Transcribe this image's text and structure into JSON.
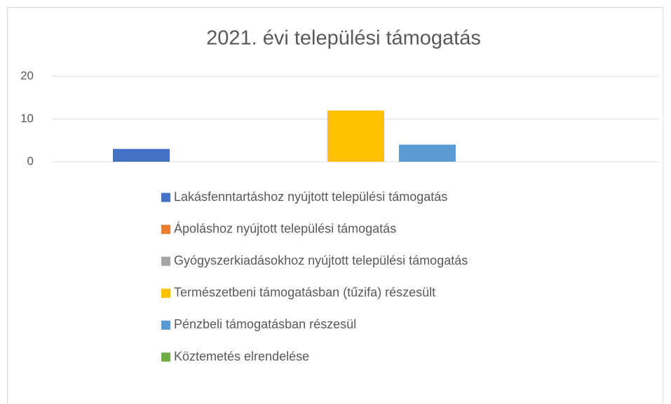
{
  "chart_data": {
    "type": "bar",
    "title": "2021. évi települési támogatás",
    "series": [
      {
        "name": "Lakásfenntartáshoz nyújtott települési támogatás",
        "color": "#4472c4",
        "values": [
          3
        ]
      },
      {
        "name": "Ápoláshoz nyújtott települési támogatás",
        "color": "#ed7d31",
        "values": [
          0
        ]
      },
      {
        "name": "Gyógyszerkiadásokhoz nyújtott települési támogatás",
        "color": "#a5a5a5",
        "values": [
          0
        ]
      },
      {
        "name": "Természetbeni támogatásban (tűzifa) részesült",
        "color": "#ffc000",
        "values": [
          12
        ]
      },
      {
        "name": "Pénzbeli támogatásban részesül",
        "color": "#5b9bd5",
        "values": [
          4
        ]
      },
      {
        "name": "Köztemetés elrendelése",
        "color": "#70ad47",
        "values": [
          0
        ]
      }
    ],
    "ylim": [
      0,
      20
    ],
    "yticks": [
      0,
      10,
      20
    ],
    "grid": true,
    "legend": "bottom"
  }
}
